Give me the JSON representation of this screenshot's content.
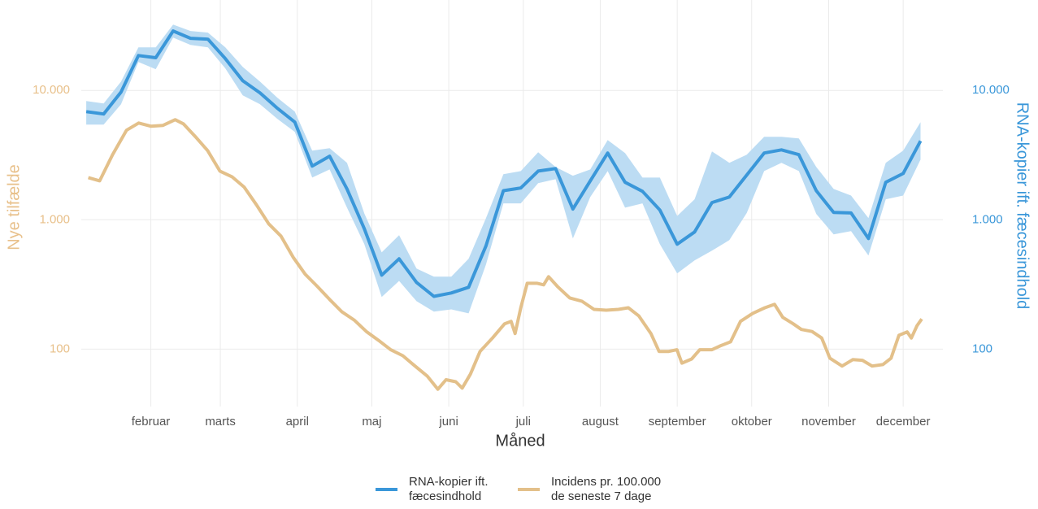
{
  "chart_data": {
    "type": "line",
    "xlabel": "Måned",
    "ylabel": "Nye tilfælde",
    "y2label": "RNA-kopier ift. fæcesindhold",
    "log_scale": true,
    "grid": true,
    "legend": "bottom",
    "xlim": [
      3,
      350
    ],
    "xticks": [
      {
        "value": 31,
        "label": "februar"
      },
      {
        "value": 59,
        "label": "marts"
      },
      {
        "value": 90,
        "label": "april"
      },
      {
        "value": 120,
        "label": "maj"
      },
      {
        "value": 151,
        "label": "juni"
      },
      {
        "value": 181,
        "label": "juli"
      },
      {
        "value": 212,
        "label": "august"
      },
      {
        "value": 243,
        "label": "september"
      },
      {
        "value": 273,
        "label": "oktober"
      },
      {
        "value": 304,
        "label": "november"
      },
      {
        "value": 334,
        "label": "december"
      }
    ],
    "ylim": [
      36,
      50000
    ],
    "yticks": [
      100,
      {
        "value": 1000,
        "label": "1.000"
      },
      {
        "value": 10000,
        "label": "10.000"
      }
    ],
    "y2lim": [
      36,
      50000
    ],
    "y2ticks": [
      100,
      {
        "value": 1000,
        "label": "1.000"
      },
      {
        "value": 10000,
        "label": "10.000"
      }
    ],
    "series": [
      {
        "name": "RNA-kopier ift.\nfæcesindhold",
        "color": "#3a97d9",
        "band_color": "#bcdcf3",
        "axis": "y2",
        "x": [
          5,
          12,
          19,
          26,
          33,
          40,
          47,
          54,
          61,
          68,
          75,
          82,
          89,
          96,
          103,
          110,
          117,
          124,
          131,
          138,
          145,
          152,
          159,
          166,
          173,
          180,
          187,
          194,
          201,
          208,
          215,
          222,
          229,
          236,
          243,
          250,
          257,
          264,
          271,
          278,
          285,
          292,
          299,
          306,
          313,
          320,
          327,
          334,
          341
        ],
        "values": [
          6850,
          6570,
          9710,
          18600,
          17900,
          28800,
          25300,
          24900,
          17600,
          11900,
          9570,
          7270,
          5690,
          2600,
          3100,
          1730,
          853,
          373,
          499,
          328,
          256,
          272,
          301,
          629,
          1680,
          1760,
          2380,
          2490,
          1210,
          2000,
          3280,
          1950,
          1660,
          1190,
          648,
          805,
          1360,
          1500,
          2220,
          3280,
          3470,
          3190,
          1680,
          1140,
          1130,
          717,
          1950,
          2280,
          4070
        ],
        "lower": [
          5440,
          5440,
          7820,
          16600,
          14600,
          25600,
          22500,
          21500,
          14800,
          9160,
          7820,
          6030,
          4780,
          2120,
          2450,
          1240,
          648,
          253,
          337,
          235,
          195,
          203,
          189,
          451,
          1340,
          1340,
          1920,
          2060,
          717,
          1500,
          2380,
          1240,
          1340,
          648,
          385,
          485,
          577,
          696,
          1130,
          2380,
          2760,
          2380,
          1110,
          771,
          817,
          529,
          1440,
          1540,
          2920
        ],
        "upper": [
          8280,
          7930,
          11700,
          21500,
          21500,
          32300,
          28800,
          28000,
          21500,
          15200,
          11700,
          8770,
          6850,
          3420,
          3580,
          2760,
          1120,
          560,
          760,
          420,
          363,
          363,
          499,
          1030,
          2250,
          2380,
          3330,
          2560,
          2190,
          2450,
          4130,
          3280,
          2120,
          2120,
          1070,
          1440,
          3380,
          2760,
          3190,
          4380,
          4380,
          4260,
          2560,
          1730,
          1540,
          1030,
          2760,
          3420,
          5690
        ]
      },
      {
        "name": "Incidens pr. 100.000\nde seneste 7 dage",
        "color": "#e3c08a",
        "axis": "y",
        "x": [
          5.8,
          10.4,
          15.6,
          21.2,
          26.1,
          31.0,
          35.9,
          40.8,
          44.1,
          49.0,
          53.9,
          58.8,
          63.7,
          68.6,
          73.6,
          78.5,
          83.4,
          88.3,
          93.2,
          98.1,
          103.0,
          107.9,
          112.9,
          117.8,
          122.7,
          127.6,
          132.5,
          137.4,
          142.3,
          146.6,
          149.9,
          153.8,
          156.4,
          159.7,
          163.6,
          168.6,
          173.5,
          176.1,
          177.7,
          180.0,
          182.6,
          186.6,
          189.2,
          191.2,
          194.8,
          199.7,
          204.6,
          209.5,
          214.4,
          219.3,
          223.3,
          227.5,
          232.4,
          235.7,
          239.6,
          242.9,
          244.9,
          248.8,
          252.1,
          257.0,
          260.3,
          264.5,
          268.5,
          273.4,
          278.3,
          282.2,
          285.5,
          289.7,
          293.0,
          297.3,
          301.2,
          304.5,
          309.4,
          313.7,
          317.6,
          321.5,
          325.8,
          329.1,
          332.3,
          335.6,
          337.3,
          339.6,
          341.5
        ],
        "values": [
          2120,
          2000,
          3190,
          4920,
          5600,
          5290,
          5370,
          5940,
          5520,
          4380,
          3420,
          2380,
          2150,
          1790,
          1300,
          930,
          749,
          514,
          379,
          305,
          242,
          195,
          168,
          137,
          117,
          99,
          89,
          74,
          62,
          49,
          58,
          56,
          50,
          64,
          96,
          122,
          157,
          164,
          132,
          209,
          323,
          323,
          314,
          363,
          305,
          249,
          235,
          203,
          200,
          203,
          209,
          181,
          132,
          96,
          96,
          99,
          78,
          84,
          99,
          99,
          106,
          114,
          164,
          189,
          209,
          222,
          176,
          157,
          142,
          137,
          122,
          85,
          74,
          83,
          82,
          74,
          76,
          85,
          128,
          136,
          122,
          152,
          171
        ]
      }
    ]
  }
}
